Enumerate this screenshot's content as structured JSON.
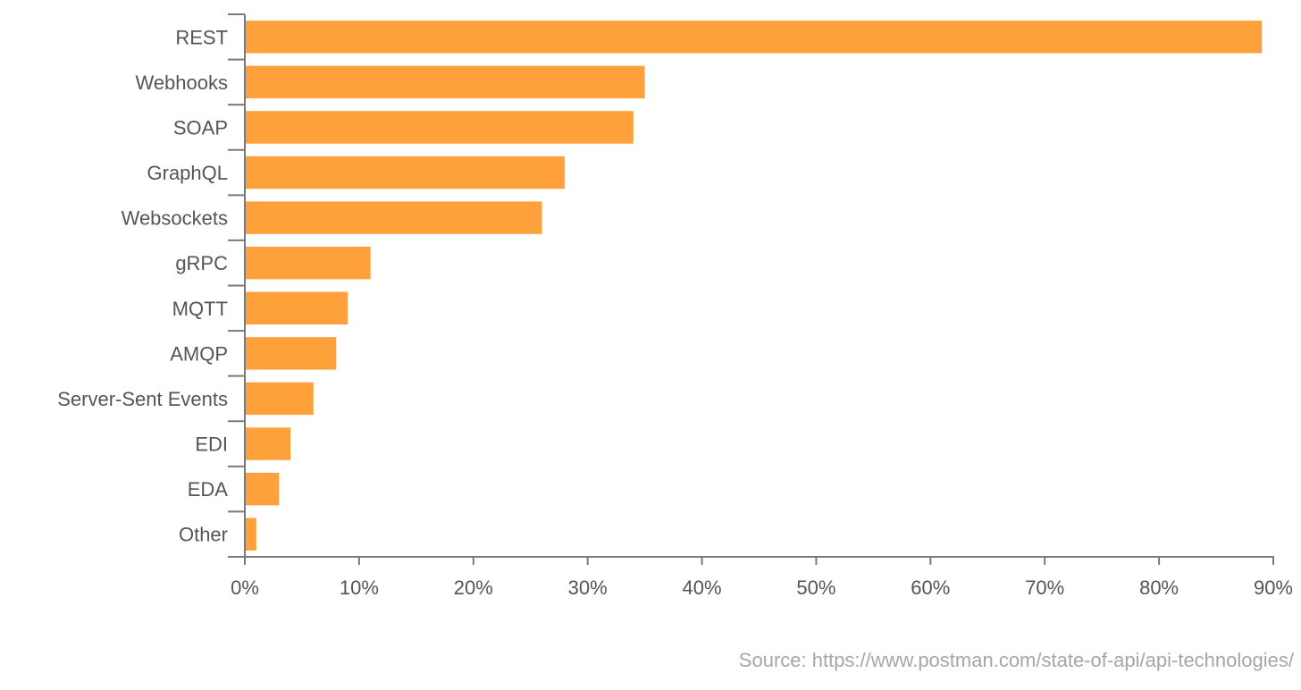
{
  "chart_data": {
    "type": "bar",
    "orientation": "horizontal",
    "title": "",
    "xlabel": "",
    "ylabel": "",
    "categories": [
      "REST",
      "Webhooks",
      "SOAP",
      "GraphQL",
      "Websockets",
      "gRPC",
      "MQTT",
      "AMQP",
      "Server-Sent Events",
      "EDI",
      "EDA",
      "Other"
    ],
    "values": [
      89,
      35,
      34,
      28,
      26,
      11,
      9,
      8,
      6,
      4,
      3,
      1
    ],
    "unit": "%",
    "xlim": [
      0,
      90
    ],
    "xticks": [
      0,
      10,
      20,
      30,
      40,
      50,
      60,
      70,
      80,
      90
    ],
    "xtick_labels": [
      "0%",
      "10%",
      "20%",
      "30%",
      "40%",
      "50%",
      "60%",
      "70%",
      "80%",
      "90%"
    ],
    "grid": false,
    "bar_color": "#FFA13A",
    "axis_color": "#7a7a7a",
    "label_color": "#555555"
  },
  "source": {
    "text": "Source: https://www.postman.com/state-of-api/api-technologies/",
    "color": "#a6a6a6"
  }
}
